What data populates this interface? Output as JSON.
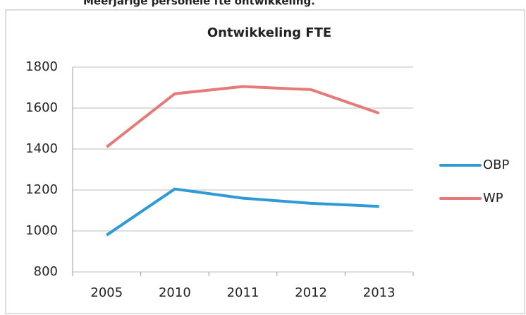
{
  "heading": "Meerjarige personele fte ontwikkeling.",
  "chart_data": {
    "type": "line",
    "title": "Ontwikkeling FTE",
    "categories": [
      "2005",
      "2010",
      "2011",
      "2012",
      "2013"
    ],
    "series": [
      {
        "name": "OBP",
        "color": "#2f9ad6",
        "values": [
          980,
          1205,
          1160,
          1135,
          1120
        ]
      },
      {
        "name": "WP",
        "color": "#e57a7a",
        "values": [
          1410,
          1670,
          1705,
          1690,
          1575
        ]
      }
    ],
    "ylim": [
      800,
      1800
    ],
    "yticks": [
      800,
      1000,
      1200,
      1400,
      1600,
      1800
    ],
    "grid": true,
    "legend": "right"
  }
}
